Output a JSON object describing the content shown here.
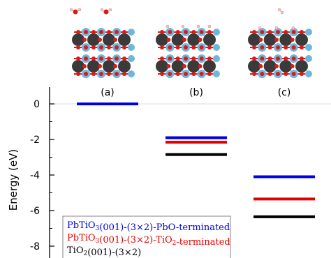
{
  "chart_data": {
    "type": "energy-level diagram",
    "ylabel": "Energy (eV)",
    "ylim": [
      -9,
      1.3
    ],
    "y_ticks": [
      0,
      -2,
      -4,
      -6,
      -8
    ],
    "y_tick_labels": [
      "0",
      "-2",
      "-4",
      "-6",
      "-8"
    ],
    "minor_ticks": [
      -1,
      -3,
      -5,
      -7
    ],
    "categories": [
      "(a)",
      "(b)",
      "(c)"
    ],
    "series": [
      {
        "key": "pbo",
        "color": "#0000e6",
        "values": [
          0,
          -1.9,
          -4.1
        ]
      },
      {
        "key": "tio2",
        "color": "#e60000",
        "values": [
          null,
          -2.15,
          -5.35
        ]
      },
      {
        "key": "tio2_bulk",
        "color": "#000000",
        "values": [
          null,
          -2.85,
          -6.35
        ]
      }
    ],
    "legend": {
      "placement": "bottom-left",
      "entries": [
        {
          "color": "#0000e6",
          "parts": [
            {
              "text": "PbTiO",
              "sub": false
            },
            {
              "text": "3",
              "sub": true
            },
            {
              "text": "(001)-(3×2)-PbO-terminated",
              "sub": false
            }
          ]
        },
        {
          "color": "#e60000",
          "parts": [
            {
              "text": "PbTiO",
              "sub": false
            },
            {
              "text": "3",
              "sub": true
            },
            {
              "text": "(001)-(3×2)-TiO",
              "sub": false
            },
            {
              "text": "2",
              "sub": true
            },
            {
              "text": "-terminated",
              "sub": false
            }
          ]
        },
        {
          "color": "#000000",
          "parts": [
            {
              "text": "TiO",
              "sub": false
            },
            {
              "text": "2",
              "sub": true
            },
            {
              "text": "(001)-(3×2)",
              "sub": false
            }
          ]
        }
      ]
    }
  },
  "structures": {
    "atom_colors": {
      "pb": "#3a3a3a",
      "ti": "#6fb6dc",
      "o": "#d81c1c",
      "h": "#f3c9c9"
    }
  }
}
